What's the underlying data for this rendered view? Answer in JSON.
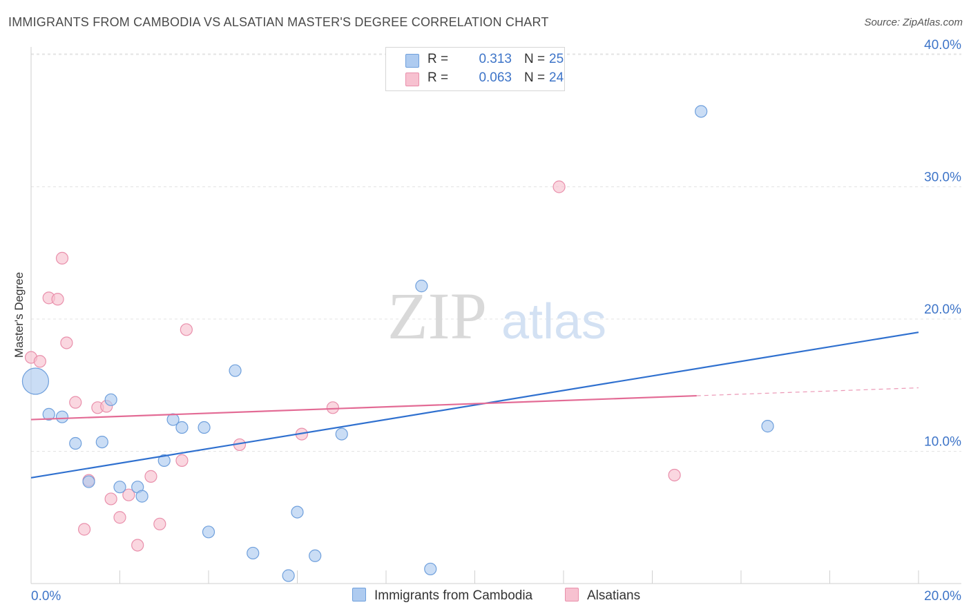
{
  "header": {
    "title": "IMMIGRANTS FROM CAMBODIA VS ALSATIAN MASTER'S DEGREE CORRELATION CHART",
    "source": "Source: ZipAtlas.com"
  },
  "watermark": {
    "part1": "ZIP",
    "part2": "atlas"
  },
  "legend": {
    "r_label": "R =",
    "n_label": "N =",
    "rows": [
      {
        "r": "0.313",
        "n": "25"
      },
      {
        "r": "0.063",
        "n": "24"
      }
    ]
  },
  "colors": {
    "blue_fill": "#aecbf0",
    "blue_stroke": "#6e9fdc",
    "blue_line": "#2f70cf",
    "pink_fill": "#f7c1d0",
    "pink_stroke": "#e98fab",
    "pink_line": "#e36b95",
    "axis_text": "#3d74c8"
  },
  "chart_data": {
    "type": "scatter",
    "title": "IMMIGRANTS FROM CAMBODIA VS ALSATIAN MASTER'S DEGREE CORRELATION CHART",
    "xlabel": "",
    "ylabel": "Master's Degree",
    "xlim": [
      0,
      20
    ],
    "ylim": [
      0,
      42
    ],
    "x_tick_labels": [
      "0.0%",
      "20.0%"
    ],
    "y_ticks": [
      10,
      20,
      30,
      40
    ],
    "y_tick_labels": [
      "10.0%",
      "20.0%",
      "30.0%",
      "40.0%"
    ],
    "grid": true,
    "series": [
      {
        "name": "Immigrants from Cambodia",
        "R": 0.313,
        "N": 25,
        "trend": {
          "x0": 0,
          "y0": 8.0,
          "x1": 20,
          "y1": 19.0,
          "solid_until": 20
        },
        "points": [
          {
            "x": 0.1,
            "y": 15.3,
            "big": true
          },
          {
            "x": 0.4,
            "y": 12.8
          },
          {
            "x": 0.7,
            "y": 12.6
          },
          {
            "x": 1.0,
            "y": 10.6
          },
          {
            "x": 1.6,
            "y": 10.7
          },
          {
            "x": 1.3,
            "y": 7.7
          },
          {
            "x": 1.8,
            "y": 13.9
          },
          {
            "x": 2.0,
            "y": 7.3
          },
          {
            "x": 2.4,
            "y": 7.3
          },
          {
            "x": 2.5,
            "y": 6.6
          },
          {
            "x": 3.0,
            "y": 9.3
          },
          {
            "x": 3.2,
            "y": 12.4
          },
          {
            "x": 3.4,
            "y": 11.8
          },
          {
            "x": 3.9,
            "y": 11.8
          },
          {
            "x": 4.0,
            "y": 3.9
          },
          {
            "x": 4.6,
            "y": 16.1
          },
          {
            "x": 5.0,
            "y": 2.3
          },
          {
            "x": 5.8,
            "y": 0.6
          },
          {
            "x": 6.0,
            "y": 5.4
          },
          {
            "x": 6.4,
            "y": 2.1
          },
          {
            "x": 7.0,
            "y": 11.3
          },
          {
            "x": 8.8,
            "y": 22.5
          },
          {
            "x": 9.0,
            "y": 1.1
          },
          {
            "x": 15.1,
            "y": 35.7
          },
          {
            "x": 16.6,
            "y": 11.9
          }
        ]
      },
      {
        "name": "Alsatians",
        "R": 0.063,
        "N": 24,
        "trend": {
          "x0": 0,
          "y0": 12.4,
          "x1": 20,
          "y1": 14.8,
          "solid_until": 15.0
        },
        "points": [
          {
            "x": 0.0,
            "y": 17.1
          },
          {
            "x": 0.2,
            "y": 16.8
          },
          {
            "x": 0.4,
            "y": 21.6
          },
          {
            "x": 0.6,
            "y": 21.5
          },
          {
            "x": 0.7,
            "y": 24.6
          },
          {
            "x": 0.8,
            "y": 18.2
          },
          {
            "x": 1.0,
            "y": 13.7
          },
          {
            "x": 1.2,
            "y": 4.1
          },
          {
            "x": 1.3,
            "y": 7.8
          },
          {
            "x": 1.5,
            "y": 13.3
          },
          {
            "x": 1.7,
            "y": 13.4
          },
          {
            "x": 1.8,
            "y": 6.4
          },
          {
            "x": 2.0,
            "y": 5.0
          },
          {
            "x": 2.2,
            "y": 6.7
          },
          {
            "x": 2.4,
            "y": 2.9
          },
          {
            "x": 2.7,
            "y": 8.1
          },
          {
            "x": 2.9,
            "y": 4.5
          },
          {
            "x": 3.4,
            "y": 9.3
          },
          {
            "x": 3.5,
            "y": 19.2
          },
          {
            "x": 4.7,
            "y": 10.5
          },
          {
            "x": 6.1,
            "y": 11.3
          },
          {
            "x": 6.8,
            "y": 13.3
          },
          {
            "x": 11.9,
            "y": 30.0
          },
          {
            "x": 14.5,
            "y": 8.2
          }
        ]
      }
    ]
  }
}
